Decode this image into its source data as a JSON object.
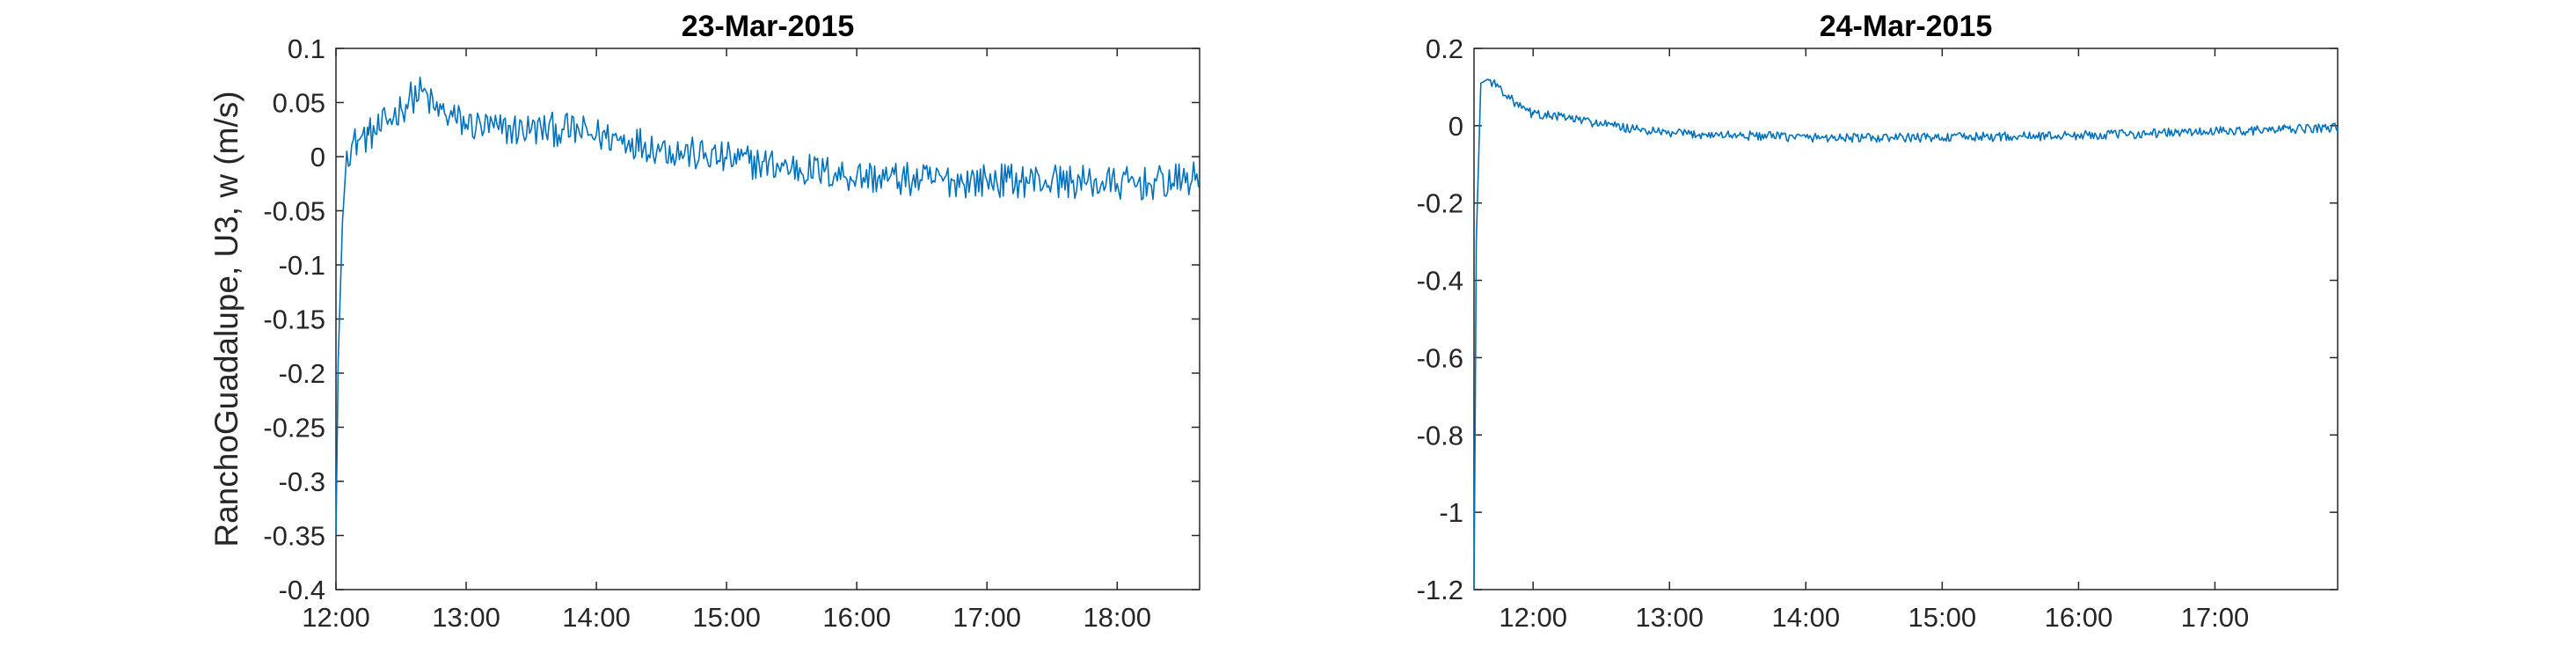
{
  "line_color": "#0072bd",
  "axis_color": "#262626",
  "chart_data": [
    {
      "type": "line",
      "title": "23-Mar-2015",
      "xlabel": "",
      "ylabel": "RanchoGuadalupe, U3, w (m/s)",
      "x_tick_labels": [
        "12:00",
        "13:00",
        "14:00",
        "15:00",
        "16:00",
        "17:00",
        "18:00"
      ],
      "y_tick_labels": [
        "0.1",
        "0.05",
        "0",
        "-0.05",
        "-0.1",
        "-0.15",
        "-0.2",
        "-0.25",
        "-0.3",
        "-0.35",
        "-0.4"
      ],
      "x_range": [
        "12:00",
        "18:38"
      ],
      "ylim": [
        -0.4,
        0.1
      ],
      "grid": false,
      "series": [
        {
          "points": [
            [
              "12:00",
              -0.35
            ],
            [
              "12:01",
              -0.19
            ],
            [
              "12:03",
              -0.06
            ],
            [
              "12:05",
              0.005
            ],
            [
              "12:10",
              0.015
            ],
            [
              "12:15",
              0.02
            ],
            [
              "12:20",
              0.025
            ],
            [
              "12:25",
              0.035
            ],
            [
              "12:30",
              0.045
            ],
            [
              "12:35",
              0.055
            ],
            [
              "12:40",
              0.06
            ],
            [
              "12:45",
              0.045
            ],
            [
              "12:50",
              0.04
            ],
            [
              "12:55",
              0.035
            ],
            [
              "13:00",
              0.03
            ],
            [
              "13:15",
              0.025
            ],
            [
              "13:30",
              0.025
            ],
            [
              "13:45",
              0.025
            ],
            [
              "14:00",
              0.02
            ],
            [
              "14:15",
              0.015
            ],
            [
              "14:30",
              0.008
            ],
            [
              "14:45",
              0.002
            ],
            [
              "15:00",
              -0.002
            ],
            [
              "15:15",
              -0.006
            ],
            [
              "15:30",
              -0.01
            ],
            [
              "15:45",
              -0.014
            ],
            [
              "16:00",
              -0.018
            ],
            [
              "16:15",
              -0.02
            ],
            [
              "16:30",
              -0.022
            ],
            [
              "16:45",
              -0.022
            ],
            [
              "17:00",
              -0.022
            ],
            [
              "17:15",
              -0.022
            ],
            [
              "17:30",
              -0.022
            ],
            [
              "17:45",
              -0.024
            ],
            [
              "18:00",
              -0.025
            ],
            [
              "18:15",
              -0.025
            ],
            [
              "18:30",
              -0.022
            ],
            [
              "18:38",
              -0.02
            ]
          ]
        }
      ]
    },
    {
      "type": "line",
      "title": "24-Mar-2015",
      "xlabel": "",
      "ylabel": "",
      "x_tick_labels": [
        "12:00",
        "13:00",
        "14:00",
        "15:00",
        "16:00",
        "17:00"
      ],
      "y_tick_labels": [
        "0.2",
        "0",
        "-0.2",
        "-0.4",
        "-0.6",
        "-0.8",
        "-1",
        "-1.2"
      ],
      "x_range": [
        "11:34",
        "17:54"
      ],
      "ylim": [
        -1.2,
        0.2
      ],
      "grid": false,
      "series": [
        {
          "points": [
            [
              "11:34",
              -1.2
            ],
            [
              "11:35",
              -0.3
            ],
            [
              "11:37",
              0.11
            ],
            [
              "11:40",
              0.12
            ],
            [
              "11:45",
              0.1
            ],
            [
              "11:50",
              0.07
            ],
            [
              "11:55",
              0.045
            ],
            [
              "12:00",
              0.03
            ],
            [
              "12:10",
              0.025
            ],
            [
              "12:20",
              0.015
            ],
            [
              "12:30",
              0.005
            ],
            [
              "12:45",
              -0.01
            ],
            [
              "13:00",
              -0.02
            ],
            [
              "13:30",
              -0.025
            ],
            [
              "14:00",
              -0.03
            ],
            [
              "14:30",
              -0.032
            ],
            [
              "15:00",
              -0.03
            ],
            [
              "15:30",
              -0.028
            ],
            [
              "16:00",
              -0.025
            ],
            [
              "16:30",
              -0.02
            ],
            [
              "17:00",
              -0.015
            ],
            [
              "17:30",
              -0.01
            ],
            [
              "17:54",
              -0.005
            ]
          ]
        }
      ]
    }
  ]
}
